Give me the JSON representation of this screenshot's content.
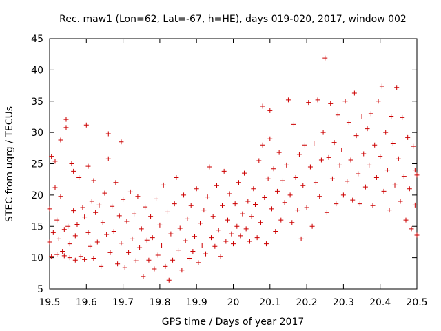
{
  "chart_data": {
    "type": "scatter",
    "title": "Rec. maw1 (Lon=62, Lat=-67, h=HE), days 019-020, 2017, window 002",
    "xlabel": "GPS time / Days of year 2017",
    "ylabel": "STEC from uqrg / TECUs",
    "xlim": [
      19.5,
      20.5
    ],
    "ylim": [
      5,
      45
    ],
    "xticks": [
      "19.5",
      "19.6",
      "19.7",
      "19.8",
      "19.9",
      "20",
      "20.1",
      "20.2",
      "20.3",
      "20.4",
      "20.5"
    ],
    "yticks": [
      "5",
      "10",
      "15",
      "20",
      "25",
      "30",
      "35",
      "40",
      "45"
    ],
    "grid": false,
    "legend": "none",
    "marker": "plus",
    "color": "#cc0000",
    "series": [
      {
        "points": [
          [
            19.5,
            12.5
          ],
          [
            19.5,
            17.8
          ],
          [
            19.505,
            26.2
          ],
          [
            19.505,
            10.2
          ],
          [
            19.51,
            14.0
          ],
          [
            19.515,
            25.4
          ],
          [
            19.515,
            21.2
          ],
          [
            19.52,
            16.0
          ],
          [
            19.52,
            10.5
          ],
          [
            19.525,
            13.0
          ],
          [
            19.53,
            28.8
          ],
          [
            19.53,
            19.8
          ],
          [
            19.535,
            11.0
          ],
          [
            19.54,
            14.5
          ],
          [
            19.54,
            10.3
          ],
          [
            19.545,
            32.1
          ],
          [
            19.545,
            30.8
          ],
          [
            19.55,
            15.0
          ],
          [
            19.555,
            12.2
          ],
          [
            19.555,
            10.0
          ],
          [
            19.56,
            25.0
          ],
          [
            19.565,
            23.8
          ],
          [
            19.565,
            17.5
          ],
          [
            19.57,
            13.5
          ],
          [
            19.57,
            9.6
          ],
          [
            19.575,
            15.3
          ],
          [
            19.58,
            22.8
          ],
          [
            19.585,
            10.2
          ],
          [
            19.59,
            18.0
          ],
          [
            19.595,
            16.5
          ],
          [
            19.595,
            9.7
          ],
          [
            19.6,
            31.2
          ],
          [
            19.605,
            24.6
          ],
          [
            19.605,
            14.0
          ],
          [
            19.61,
            11.8
          ],
          [
            19.615,
            19.0
          ],
          [
            19.62,
            22.3
          ],
          [
            19.62,
            9.9
          ],
          [
            19.625,
            17.2
          ],
          [
            19.63,
            12.5
          ],
          [
            19.635,
            18.4
          ],
          [
            19.64,
            8.6
          ],
          [
            19.645,
            15.6
          ],
          [
            19.65,
            20.3
          ],
          [
            19.655,
            13.7
          ],
          [
            19.66,
            29.8
          ],
          [
            19.66,
            25.8
          ],
          [
            19.665,
            10.8
          ],
          [
            19.67,
            18.2
          ],
          [
            19.675,
            14.2
          ],
          [
            19.68,
            22.0
          ],
          [
            19.685,
            9.0
          ],
          [
            19.69,
            16.7
          ],
          [
            19.695,
            28.5
          ],
          [
            19.695,
            12.3
          ],
          [
            19.7,
            19.3
          ],
          [
            19.705,
            8.4
          ],
          [
            19.71,
            15.8
          ],
          [
            19.715,
            10.8
          ],
          [
            19.72,
            20.5
          ],
          [
            19.725,
            13.0
          ],
          [
            19.73,
            17.0
          ],
          [
            19.735,
            9.5
          ],
          [
            19.74,
            19.8
          ],
          [
            19.745,
            11.6
          ],
          [
            19.75,
            14.6
          ],
          [
            19.755,
            7.0
          ],
          [
            19.76,
            18.1
          ],
          [
            19.765,
            12.8
          ],
          [
            19.77,
            9.6
          ],
          [
            19.775,
            16.6
          ],
          [
            19.78,
            13.2
          ],
          [
            19.785,
            8.2
          ],
          [
            19.79,
            19.4
          ],
          [
            19.795,
            10.4
          ],
          [
            19.8,
            15.2
          ],
          [
            19.805,
            12.0
          ],
          [
            19.81,
            21.6
          ],
          [
            19.815,
            8.6
          ],
          [
            19.82,
            17.3
          ],
          [
            19.825,
            6.4
          ],
          [
            19.83,
            13.8
          ],
          [
            19.835,
            9.6
          ],
          [
            19.84,
            18.6
          ],
          [
            19.845,
            22.8
          ],
          [
            19.85,
            11.2
          ],
          [
            19.855,
            14.7
          ],
          [
            19.86,
            8.0
          ],
          [
            19.865,
            20.0
          ],
          [
            19.87,
            12.7
          ],
          [
            19.875,
            16.2
          ],
          [
            19.88,
            9.9
          ],
          [
            19.885,
            18.3
          ],
          [
            19.89,
            11.0
          ],
          [
            19.895,
            13.4
          ],
          [
            19.9,
            21.0
          ],
          [
            19.905,
            9.2
          ],
          [
            19.91,
            15.5
          ],
          [
            19.915,
            12.0
          ],
          [
            19.92,
            17.6
          ],
          [
            19.925,
            10.6
          ],
          [
            19.93,
            19.7
          ],
          [
            19.935,
            24.5
          ],
          [
            19.94,
            13.2
          ],
          [
            19.945,
            16.6
          ],
          [
            19.95,
            11.8
          ],
          [
            19.955,
            21.5
          ],
          [
            19.96,
            14.4
          ],
          [
            19.965,
            10.2
          ],
          [
            19.97,
            18.3
          ],
          [
            19.975,
            23.8
          ],
          [
            19.98,
            12.6
          ],
          [
            19.985,
            16.0
          ],
          [
            19.99,
            20.2
          ],
          [
            19.995,
            13.8
          ],
          [
            20.0,
            12.2
          ],
          [
            20.005,
            18.6
          ],
          [
            20.01,
            15.0
          ],
          [
            20.015,
            22.0
          ],
          [
            20.02,
            13.5
          ],
          [
            20.025,
            17.0
          ],
          [
            20.03,
            23.5
          ],
          [
            20.035,
            14.6
          ],
          [
            20.04,
            19.0
          ],
          [
            20.045,
            12.6
          ],
          [
            20.05,
            16.6
          ],
          [
            20.055,
            21.0
          ],
          [
            20.06,
            18.5
          ],
          [
            20.065,
            13.2
          ],
          [
            20.07,
            25.5
          ],
          [
            20.075,
            15.6
          ],
          [
            20.08,
            34.2
          ],
          [
            20.08,
            28.0
          ],
          [
            20.085,
            19.6
          ],
          [
            20.09,
            12.2
          ],
          [
            20.095,
            22.6
          ],
          [
            20.1,
            33.5
          ],
          [
            20.1,
            29.0
          ],
          [
            20.105,
            17.8
          ],
          [
            20.11,
            24.2
          ],
          [
            20.115,
            14.2
          ],
          [
            20.12,
            20.6
          ],
          [
            20.125,
            26.8
          ],
          [
            20.13,
            16.0
          ],
          [
            20.135,
            22.3
          ],
          [
            20.14,
            18.8
          ],
          [
            20.145,
            24.8
          ],
          [
            20.15,
            35.2
          ],
          [
            20.155,
            20.0
          ],
          [
            20.16,
            15.6
          ],
          [
            20.165,
            31.3
          ],
          [
            20.17,
            22.8
          ],
          [
            20.175,
            17.6
          ],
          [
            20.18,
            26.5
          ],
          [
            20.185,
            13.0
          ],
          [
            20.19,
            21.5
          ],
          [
            20.195,
            28.0
          ],
          [
            20.2,
            18.0
          ],
          [
            20.205,
            34.8
          ],
          [
            20.21,
            24.5
          ],
          [
            20.215,
            15.0
          ],
          [
            20.22,
            28.3
          ],
          [
            20.225,
            22.0
          ],
          [
            20.23,
            35.2
          ],
          [
            20.235,
            19.8
          ],
          [
            20.24,
            25.6
          ],
          [
            20.245,
            30.0
          ],
          [
            20.25,
            41.9
          ],
          [
            20.255,
            17.2
          ],
          [
            20.26,
            26.0
          ],
          [
            20.265,
            34.6
          ],
          [
            20.27,
            22.6
          ],
          [
            20.275,
            28.4
          ],
          [
            20.28,
            18.6
          ],
          [
            20.285,
            32.8
          ],
          [
            20.29,
            24.8
          ],
          [
            20.295,
            27.2
          ],
          [
            20.3,
            20.0
          ],
          [
            20.305,
            35.0
          ],
          [
            20.31,
            22.2
          ],
          [
            20.315,
            31.6
          ],
          [
            20.32,
            25.6
          ],
          [
            20.325,
            19.2
          ],
          [
            20.33,
            36.3
          ],
          [
            20.335,
            29.5
          ],
          [
            20.34,
            23.4
          ],
          [
            20.345,
            18.6
          ],
          [
            20.35,
            32.5
          ],
          [
            20.355,
            26.6
          ],
          [
            20.36,
            21.3
          ],
          [
            20.365,
            30.6
          ],
          [
            20.37,
            24.8
          ],
          [
            20.375,
            33.0
          ],
          [
            20.38,
            18.3
          ],
          [
            20.385,
            28.0
          ],
          [
            20.39,
            22.8
          ],
          [
            20.395,
            35.0
          ],
          [
            20.4,
            26.2
          ],
          [
            20.405,
            37.4
          ],
          [
            20.41,
            20.6
          ],
          [
            20.415,
            30.0
          ],
          [
            20.42,
            24.0
          ],
          [
            20.425,
            17.6
          ],
          [
            20.43,
            32.6
          ],
          [
            20.435,
            28.2
          ],
          [
            20.44,
            21.6
          ],
          [
            20.445,
            37.2
          ],
          [
            20.45,
            25.8
          ],
          [
            20.455,
            19.0
          ],
          [
            20.46,
            32.4
          ],
          [
            20.465,
            23.0
          ],
          [
            20.47,
            16.0
          ],
          [
            20.475,
            29.2
          ],
          [
            20.48,
            21.0
          ],
          [
            20.485,
            14.6
          ],
          [
            20.49,
            27.8
          ],
          [
            20.495,
            24.0
          ],
          [
            20.495,
            18.4
          ],
          [
            20.5,
            13.6
          ],
          [
            20.5,
            23.2
          ]
        ]
      }
    ]
  }
}
